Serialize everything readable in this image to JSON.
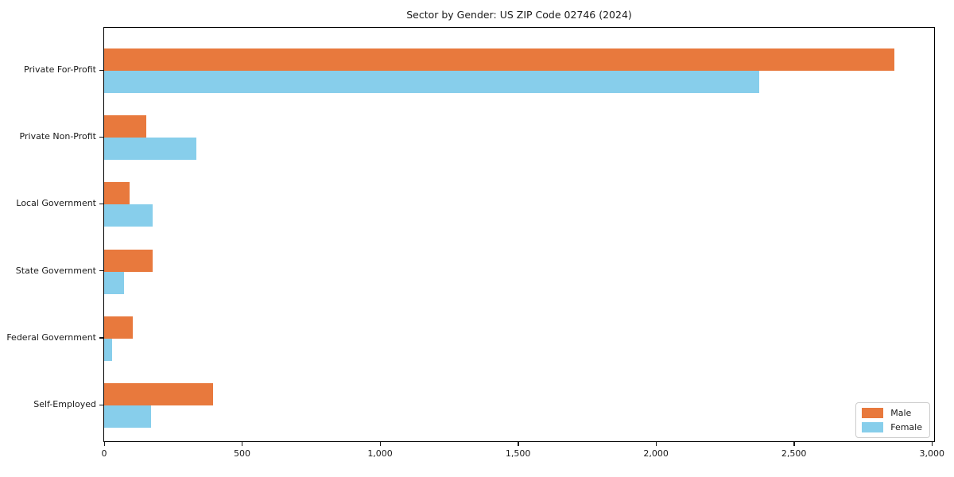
{
  "chart_data": {
    "type": "bar",
    "orientation": "horizontal",
    "title": "Sector by Gender: US ZIP Code 02746 (2024)",
    "categories": [
      "Private For-Profit",
      "Private Non-Profit",
      "Local Government",
      "State Government",
      "Federal Government",
      "Self-Employed"
    ],
    "series": [
      {
        "name": "Male",
        "color": "#E8793D",
        "values": [
          2865,
          153,
          93,
          175,
          105,
          396
        ]
      },
      {
        "name": "Female",
        "color": "#87CEEB",
        "values": [
          2373,
          333,
          177,
          72,
          30,
          170
        ]
      }
    ],
    "xlabel": "",
    "ylabel": "",
    "xlim": [
      0,
      3008
    ],
    "xticks": [
      0,
      500,
      1000,
      1500,
      2000,
      2500,
      3000
    ],
    "xtick_labels": [
      "0",
      "500",
      "1,000",
      "1,500",
      "2,000",
      "2,500",
      "3,000"
    ],
    "grid": false,
    "legend_position": "lower right",
    "colors": {
      "spine": "#000000",
      "text": "#1a1a1a",
      "legend_border": "#cccccc",
      "background": "#ffffff"
    }
  }
}
